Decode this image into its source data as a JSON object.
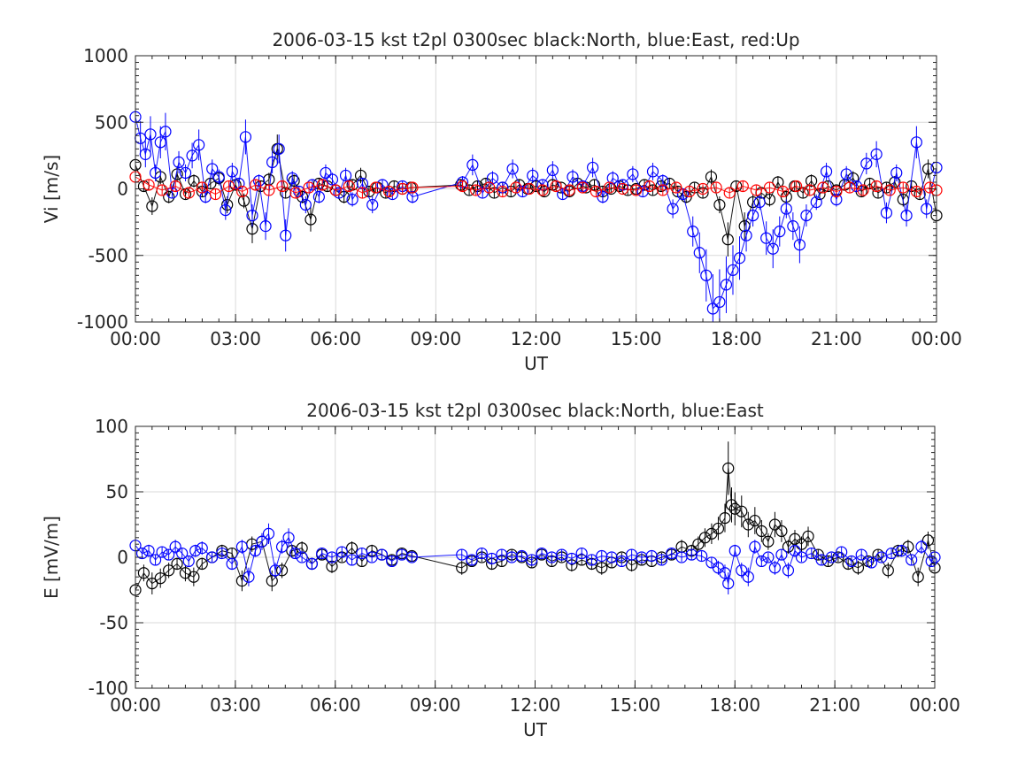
{
  "figure": {
    "background": "#ffffff"
  },
  "chart_data": [
    {
      "type": "scatter",
      "title": "2006-03-15 kst t2pl 0300sec black:North, blue:East, red:Up",
      "xlabel": "UT",
      "ylabel": "Vi [m/s]",
      "xlim": [
        0,
        24
      ],
      "ylim": [
        -1000,
        1000
      ],
      "xticks": [
        0,
        3,
        6,
        9,
        12,
        15,
        18,
        21,
        24
      ],
      "xtick_labels": [
        "00:00",
        "03:00",
        "06:00",
        "09:00",
        "12:00",
        "15:00",
        "18:00",
        "21:00",
        "00:00"
      ],
      "yticks": [
        -1000,
        -500,
        0,
        500,
        1000
      ],
      "ytick_labels": [
        "-1000",
        "-500",
        "0",
        "500",
        "1000"
      ],
      "grid": true,
      "x_units": "hours UT",
      "series": [
        {
          "color": "#000000",
          "x": [
            0.0,
            0.25,
            0.5,
            0.75,
            1.0,
            1.25,
            1.5,
            1.75,
            2.0,
            2.25,
            2.5,
            2.75,
            3.0,
            3.25,
            3.5,
            3.75,
            4.0,
            4.25,
            4.5,
            4.75,
            5.0,
            5.25,
            5.5,
            5.75,
            6.0,
            6.25,
            6.5,
            6.75,
            7.0,
            7.25,
            7.5,
            7.75,
            8.0,
            8.25,
            9.75,
            10.0,
            10.25,
            10.5,
            10.75,
            11.0,
            11.25,
            11.5,
            11.75,
            12.0,
            12.25,
            12.5,
            12.75,
            13.0,
            13.25,
            13.5,
            13.75,
            14.0,
            14.25,
            14.5,
            14.75,
            15.0,
            15.25,
            15.5,
            15.75,
            16.0,
            16.25,
            16.5,
            16.75,
            17.0,
            17.25,
            17.5,
            17.75,
            18.0,
            18.25,
            18.5,
            18.75,
            19.0,
            19.25,
            19.5,
            19.75,
            20.0,
            20.25,
            20.5,
            20.75,
            21.0,
            21.25,
            21.5,
            21.75,
            22.0,
            22.25,
            22.5,
            22.75,
            23.0,
            23.25,
            23.5,
            23.75,
            24.0
          ],
          "y": [
            180,
            20,
            -130,
            90,
            -60,
            110,
            -40,
            60,
            -20,
            40,
            80,
            -120,
            30,
            -90,
            -300,
            20,
            70,
            300,
            -30,
            60,
            -60,
            -230,
            40,
            20,
            -10,
            -60,
            30,
            100,
            -20,
            10,
            -30,
            20,
            0,
            10,
            30,
            -10,
            20,
            40,
            -30,
            10,
            -20,
            30,
            0,
            20,
            -20,
            30,
            10,
            -20,
            40,
            10,
            30,
            -20,
            0,
            20,
            -10,
            0,
            30,
            -10,
            20,
            40,
            -20,
            -60,
            10,
            -30,
            90,
            -120,
            -380,
            20,
            -280,
            -100,
            -30,
            -80,
            50,
            -60,
            20,
            -30,
            60,
            -40,
            20,
            -10,
            30,
            80,
            -20,
            40,
            -30,
            10,
            50,
            -80,
            20,
            -40,
            150,
            -200
          ]
        },
        {
          "color": "#0000ff",
          "x": [
            0.0,
            0.15,
            0.3,
            0.45,
            0.6,
            0.75,
            0.9,
            1.1,
            1.3,
            1.5,
            1.7,
            1.9,
            2.1,
            2.3,
            2.5,
            2.7,
            2.9,
            3.1,
            3.3,
            3.5,
            3.7,
            3.9,
            4.1,
            4.3,
            4.5,
            4.7,
            4.9,
            5.1,
            5.3,
            5.5,
            5.7,
            5.9,
            6.1,
            6.3,
            6.5,
            6.8,
            7.1,
            7.4,
            7.7,
            8.0,
            8.3,
            9.8,
            10.1,
            10.4,
            10.7,
            11.0,
            11.3,
            11.6,
            11.9,
            12.2,
            12.5,
            12.8,
            13.1,
            13.4,
            13.7,
            14.0,
            14.3,
            14.6,
            14.9,
            15.2,
            15.5,
            15.8,
            16.1,
            16.4,
            16.7,
            16.9,
            17.1,
            17.3,
            17.5,
            17.7,
            17.9,
            18.1,
            18.3,
            18.5,
            18.7,
            18.9,
            19.1,
            19.3,
            19.5,
            19.7,
            19.9,
            20.1,
            20.4,
            20.7,
            21.0,
            21.3,
            21.6,
            21.9,
            22.2,
            22.5,
            22.8,
            23.1,
            23.4,
            23.7,
            24.0
          ],
          "y": [
            540,
            380,
            260,
            410,
            120,
            350,
            430,
            -30,
            200,
            120,
            250,
            330,
            -60,
            150,
            90,
            -160,
            130,
            40,
            390,
            -200,
            60,
            -280,
            200,
            300,
            -350,
            80,
            -20,
            -120,
            30,
            -60,
            120,
            70,
            -30,
            100,
            -80,
            40,
            -120,
            30,
            -40,
            20,
            -60,
            50,
            180,
            -30,
            80,
            10,
            150,
            -20,
            100,
            30,
            140,
            -40,
            90,
            20,
            160,
            -60,
            80,
            30,
            110,
            -20,
            130,
            60,
            -150,
            -40,
            -320,
            -480,
            -650,
            -900,
            -850,
            -720,
            -610,
            -520,
            -350,
            -200,
            -100,
            -370,
            -450,
            -320,
            -150,
            -280,
            -420,
            -200,
            -100,
            130,
            -80,
            110,
            20,
            190,
            260,
            -180,
            120,
            -200,
            350,
            -150,
            160
          ]
        },
        {
          "color": "#ff0000",
          "x": [
            0.0,
            0.4,
            0.8,
            1.2,
            1.6,
            2.0,
            2.4,
            2.8,
            3.2,
            3.6,
            4.0,
            4.4,
            4.8,
            5.2,
            5.6,
            6.0,
            6.4,
            6.8,
            7.2,
            7.6,
            8.0,
            8.3,
            9.8,
            10.2,
            10.6,
            11.0,
            11.4,
            11.8,
            12.2,
            12.6,
            13.0,
            13.4,
            13.8,
            14.2,
            14.6,
            15.0,
            15.4,
            15.8,
            16.2,
            16.6,
            17.0,
            17.4,
            17.8,
            18.2,
            18.6,
            19.0,
            19.4,
            19.8,
            20.2,
            20.6,
            21.0,
            21.4,
            21.8,
            22.2,
            22.6,
            23.0,
            23.4,
            23.8,
            24.0
          ],
          "y": [
            90,
            30,
            -10,
            20,
            -30,
            10,
            -40,
            20,
            -20,
            30,
            -10,
            20,
            -30,
            10,
            30,
            -10,
            20,
            -30,
            10,
            -20,
            0,
            10,
            20,
            -10,
            10,
            -20,
            10,
            0,
            -10,
            20,
            -10,
            10,
            -20,
            10,
            0,
            -10,
            20,
            -10,
            10,
            -20,
            0,
            10,
            -30,
            20,
            -10,
            10,
            -20,
            20,
            -10,
            10,
            -20,
            10,
            -10,
            20,
            -10,
            10,
            -20,
            10,
            -10
          ]
        }
      ]
    },
    {
      "type": "scatter",
      "title": "2006-03-15 kst t2pl 0300sec black:North, blue:East",
      "xlabel": "UT",
      "ylabel": "E [mV/m]",
      "xlim": [
        0,
        24
      ],
      "ylim": [
        -100,
        100
      ],
      "xticks": [
        0,
        3,
        6,
        9,
        12,
        15,
        18,
        21,
        24
      ],
      "xtick_labels": [
        "00:00",
        "03:00",
        "06:00",
        "09:00",
        "12:00",
        "15:00",
        "18:00",
        "21:00",
        "00:00"
      ],
      "yticks": [
        -100,
        -50,
        0,
        50,
        100
      ],
      "ytick_labels": [
        "-100",
        "-50",
        "0",
        "50",
        "100"
      ],
      "grid": true,
      "x_units": "hours UT",
      "series": [
        {
          "color": "#000000",
          "x": [
            0.0,
            0.25,
            0.5,
            0.75,
            1.0,
            1.25,
            1.5,
            1.75,
            2.0,
            2.3,
            2.6,
            2.9,
            3.2,
            3.5,
            3.8,
            4.1,
            4.4,
            4.7,
            5.0,
            5.3,
            5.6,
            5.9,
            6.2,
            6.5,
            6.8,
            7.1,
            7.4,
            7.7,
            8.0,
            8.3,
            9.8,
            10.1,
            10.4,
            10.7,
            11.0,
            11.3,
            11.6,
            11.9,
            12.2,
            12.5,
            12.8,
            13.1,
            13.4,
            13.7,
            14.0,
            14.3,
            14.6,
            14.9,
            15.2,
            15.5,
            15.8,
            16.1,
            16.4,
            16.7,
            16.9,
            17.1,
            17.3,
            17.5,
            17.7,
            17.8,
            17.9,
            18.0,
            18.2,
            18.4,
            18.6,
            18.8,
            19.0,
            19.2,
            19.4,
            19.6,
            19.8,
            20.0,
            20.2,
            20.5,
            20.8,
            21.1,
            21.4,
            21.7,
            22.0,
            22.3,
            22.6,
            22.9,
            23.2,
            23.5,
            23.8,
            24.0
          ],
          "y": [
            -25,
            -12,
            -20,
            -16,
            -10,
            -5,
            -12,
            -15,
            -5,
            0,
            5,
            3,
            -18,
            10,
            12,
            -18,
            -10,
            5,
            7,
            -5,
            2,
            -7,
            0,
            7,
            -3,
            5,
            2,
            -2,
            3,
            1,
            -8,
            -3,
            0,
            -5,
            -3,
            2,
            0,
            -4,
            2,
            -3,
            0,
            -6,
            -2,
            -5,
            -8,
            -4,
            0,
            -6,
            -2,
            -3,
            0,
            2,
            8,
            5,
            10,
            15,
            18,
            22,
            30,
            68,
            40,
            37,
            35,
            25,
            28,
            20,
            12,
            25,
            20,
            8,
            14,
            10,
            16,
            2,
            -3,
            0,
            -5,
            -8,
            -3,
            2,
            -10,
            5,
            8,
            -15,
            13,
            -8
          ]
        },
        {
          "color": "#0000ff",
          "x": [
            0.0,
            0.2,
            0.4,
            0.6,
            0.8,
            1.0,
            1.2,
            1.4,
            1.6,
            1.8,
            2.0,
            2.3,
            2.6,
            2.9,
            3.2,
            3.4,
            3.6,
            3.8,
            4.0,
            4.2,
            4.4,
            4.6,
            4.8,
            5.0,
            5.3,
            5.6,
            5.9,
            6.2,
            6.5,
            6.8,
            7.1,
            7.4,
            7.7,
            8.0,
            8.3,
            9.8,
            10.1,
            10.4,
            10.7,
            11.0,
            11.3,
            11.6,
            11.9,
            12.2,
            12.5,
            12.8,
            13.1,
            13.4,
            13.7,
            14.0,
            14.3,
            14.6,
            14.9,
            15.2,
            15.5,
            15.8,
            16.1,
            16.4,
            16.7,
            17.0,
            17.3,
            17.5,
            17.7,
            17.8,
            18.0,
            18.2,
            18.4,
            18.6,
            18.8,
            19.0,
            19.2,
            19.4,
            19.6,
            19.8,
            20.0,
            20.3,
            20.6,
            20.9,
            21.2,
            21.5,
            21.8,
            22.1,
            22.4,
            22.7,
            23.0,
            23.3,
            23.6,
            23.9,
            24.0
          ],
          "y": [
            9,
            3,
            5,
            -2,
            4,
            2,
            8,
            3,
            -3,
            5,
            7,
            0,
            3,
            -5,
            8,
            -15,
            5,
            12,
            18,
            -10,
            8,
            15,
            3,
            0,
            -5,
            3,
            0,
            4,
            -2,
            3,
            0,
            2,
            -3,
            2,
            0,
            2,
            -2,
            3,
            -1,
            2,
            0,
            1,
            -2,
            3,
            0,
            2,
            -1,
            3,
            -2,
            1,
            0,
            -3,
            2,
            0,
            1,
            -2,
            3,
            0,
            2,
            1,
            -4,
            -8,
            -12,
            -20,
            5,
            -10,
            -15,
            8,
            -3,
            0,
            -8,
            2,
            -10,
            5,
            0,
            3,
            -2,
            0,
            4,
            -3,
            2,
            -4,
            0,
            3,
            5,
            -2,
            8,
            -3,
            0
          ]
        }
      ]
    }
  ]
}
